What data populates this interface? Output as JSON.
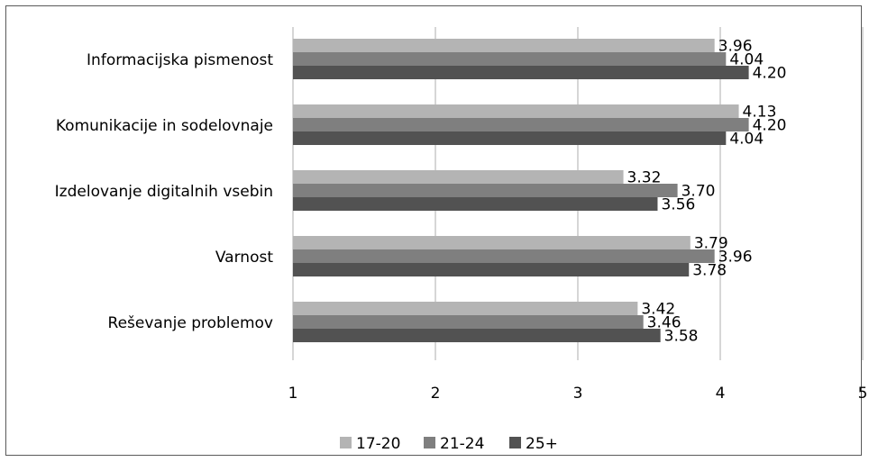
{
  "chart_data": {
    "type": "bar",
    "orientation": "horizontal",
    "categories": [
      "Informacijska pismenost",
      "Komunikacije in sodelovnaje",
      "Izdelovanje digitalnih vsebin",
      "Varnost",
      "Reševanje problemov"
    ],
    "series": [
      {
        "name": "17-20",
        "values": [
          3.96,
          4.13,
          3.32,
          3.79,
          3.42
        ],
        "labels": [
          "3.96",
          "4.13",
          "3.32",
          "3.79",
          "3.42"
        ],
        "color": "#b4b4b4"
      },
      {
        "name": "21-24",
        "values": [
          4.04,
          4.2,
          3.7,
          3.96,
          3.46
        ],
        "labels": [
          "4.04",
          "4.20",
          "3.70",
          "3.96",
          "3.46"
        ],
        "color": "#7f7f7f"
      },
      {
        "name": "25+",
        "values": [
          4.2,
          4.04,
          3.56,
          3.78,
          3.58
        ],
        "labels": [
          "4.20",
          "4.04",
          "3.56",
          "3.78",
          "3.58"
        ],
        "color": "#525252"
      }
    ],
    "xlim": [
      1,
      5
    ],
    "xticks": [
      "1",
      "2",
      "3",
      "4",
      "5"
    ],
    "title": "",
    "xlabel": "",
    "ylabel": "",
    "grid": "vertical",
    "legend_position": "bottom"
  }
}
